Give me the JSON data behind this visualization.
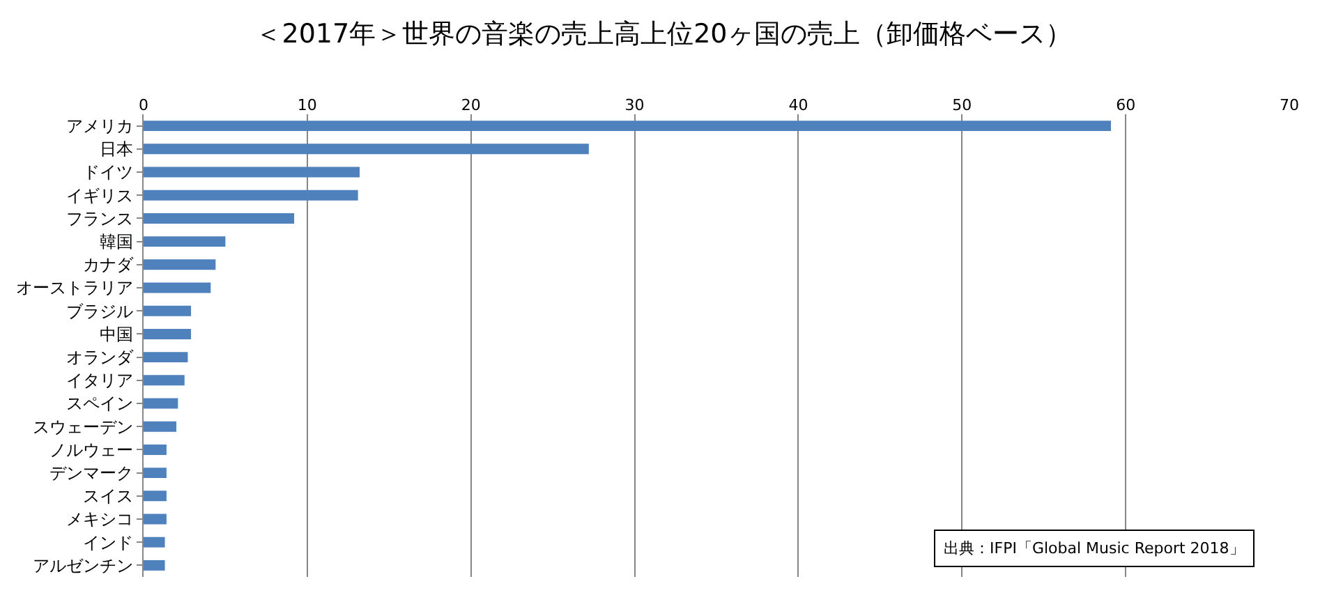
{
  "chart_data": {
    "type": "bar",
    "orientation": "horizontal",
    "title": "＜2017年＞世界の音楽の売上高上位20ヶ国の売上（卸価格ベース）",
    "categories": [
      "アメリカ",
      "日本",
      "ドイツ",
      "イギリス",
      "フランス",
      "韓国",
      "カナダ",
      "オーストラリア",
      "ブラジル",
      "中国",
      "オランダ",
      "イタリア",
      "スペイン",
      "スウェーデン",
      "ノルウェー",
      "デンマーク",
      "スイス",
      "メキシコ",
      "インド",
      "アルゼンチン"
    ],
    "values": [
      59.1,
      27.2,
      13.2,
      13.1,
      9.2,
      5.0,
      4.4,
      4.1,
      2.9,
      2.9,
      2.7,
      2.5,
      2.1,
      2.0,
      1.4,
      1.4,
      1.4,
      1.4,
      1.3,
      1.3
    ],
    "color": "#4f81bd",
    "xlim": [
      0,
      70
    ],
    "xticks": [
      0,
      10,
      20,
      30,
      40,
      50,
      60,
      70
    ],
    "grid": "x",
    "annotations": [
      "出典：IFPI「Global Music Report 2018」"
    ]
  }
}
